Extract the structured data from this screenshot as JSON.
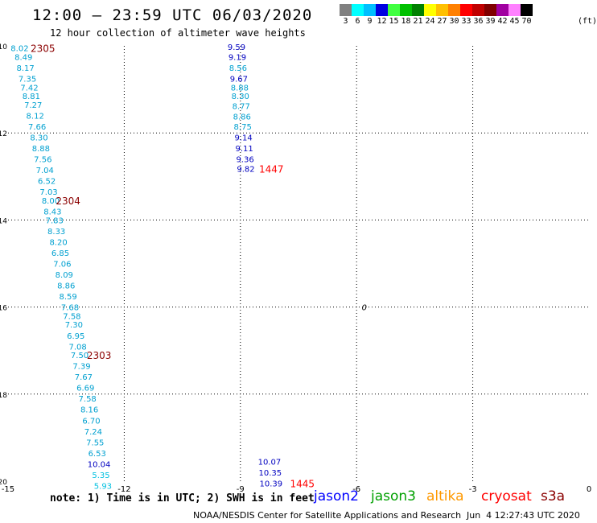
{
  "header": {
    "title": "12:00 – 23:59 UTC 06/03/2020",
    "subtitle": "12 hour collection of altimeter wave heights"
  },
  "colorbar": {
    "colors": [
      "#808080",
      "#00ffff",
      "#00bfff",
      "#0000e0",
      "#40ff40",
      "#00c000",
      "#008000",
      "#ffff00",
      "#ffc000",
      "#ff8000",
      "#ff0000",
      "#c00000",
      "#800000",
      "#a000a0",
      "#ff80ff",
      "#000000"
    ],
    "labels": [
      "3",
      "6",
      "9",
      "12",
      "15",
      "18",
      "21",
      "24",
      "27",
      "30",
      "33",
      "36",
      "39",
      "42",
      "45",
      "70"
    ],
    "unit": "(ft)"
  },
  "note": "note: 1) Time is in UTC; 2) SWH is in feet",
  "legend": [
    {
      "name": "jason2",
      "color": "#0000ff"
    },
    {
      "name": "jason3",
      "color": "#00a000"
    },
    {
      "name": "altika",
      "color": "#ff9900"
    },
    {
      "name": "cryosat",
      "color": "#ff0000"
    },
    {
      "name": "s3a",
      "color": "#8b0000"
    }
  ],
  "footer": {
    "credit": "NOAA/NESDIS Center for Satellite Applications and Research",
    "timestamp": "Jun  4 12:27:43 UTC 2020"
  },
  "chart_data": {
    "type": "scatter",
    "xlim": [
      -15,
      0
    ],
    "ylim": [
      -20,
      -10
    ],
    "x_ticks": [
      -15,
      -12,
      -9,
      -6,
      -3,
      0
    ],
    "y_ticks": [
      -10,
      -12,
      -14,
      -16,
      -18,
      -20
    ],
    "x_tick_labels": [
      "-15",
      "-12",
      "-9",
      "-6",
      "-3",
      "0"
    ],
    "y_tick_labels": [
      "-10",
      "-12",
      "-14",
      "-16",
      "-18",
      "-20"
    ],
    "grid": true,
    "tracks": [
      {
        "color": "#00a0d0",
        "points": [
          {
            "x": -14.7,
            "y": -10.05,
            "v": "8.02",
            "c": "#00a0d0"
          },
          {
            "x": -14.6,
            "y": -10.25,
            "v": "8.49",
            "c": "#00a0d0"
          },
          {
            "x": -14.55,
            "y": -10.5,
            "v": "8.17",
            "c": "#00a0d0"
          },
          {
            "x": -14.5,
            "y": -10.75,
            "v": "7.35",
            "c": "#00a0d0"
          },
          {
            "x": -14.45,
            "y": -10.95,
            "v": "7.42",
            "c": "#00a0d0"
          },
          {
            "x": -14.4,
            "y": -11.15,
            "v": "8.81",
            "c": "#00a0d0"
          },
          {
            "x": -14.35,
            "y": -11.35,
            "v": "7.27",
            "c": "#00a0d0"
          },
          {
            "x": -14.3,
            "y": -11.6,
            "v": "8.12",
            "c": "#00a0d0"
          },
          {
            "x": -14.25,
            "y": -11.85,
            "v": "7.66",
            "c": "#00a0d0"
          },
          {
            "x": -14.2,
            "y": -12.1,
            "v": "8.30",
            "c": "#00a0d0"
          },
          {
            "x": -14.15,
            "y": -12.35,
            "v": "8.88",
            "c": "#00a0d0"
          },
          {
            "x": -14.1,
            "y": -12.6,
            "v": "7.56",
            "c": "#00a0d0"
          },
          {
            "x": -14.05,
            "y": -12.85,
            "v": "7.04",
            "c": "#00a0d0"
          },
          {
            "x": -14.0,
            "y": -13.1,
            "v": "6.52",
            "c": "#00a0d0"
          },
          {
            "x": -13.95,
            "y": -13.35,
            "v": "7.03",
            "c": "#00a0d0"
          },
          {
            "x": -13.9,
            "y": -13.55,
            "v": "8.00",
            "c": "#00a0d0"
          },
          {
            "x": -13.85,
            "y": -13.8,
            "v": "8.43",
            "c": "#00a0d0"
          },
          {
            "x": -13.8,
            "y": -14.0,
            "v": "7.83",
            "c": "#00a0d0"
          },
          {
            "x": -13.75,
            "y": -14.25,
            "v": "8.33",
            "c": "#00a0d0"
          },
          {
            "x": -13.7,
            "y": -14.5,
            "v": "8.20",
            "c": "#00a0d0"
          },
          {
            "x": -13.65,
            "y": -14.75,
            "v": "6.85",
            "c": "#00a0d0"
          },
          {
            "x": -13.6,
            "y": -15.0,
            "v": "7.06",
            "c": "#00a0d0"
          },
          {
            "x": -13.55,
            "y": -15.25,
            "v": "8.09",
            "c": "#00a0d0"
          },
          {
            "x": -13.5,
            "y": -15.5,
            "v": "8.86",
            "c": "#00a0d0"
          },
          {
            "x": -13.45,
            "y": -15.75,
            "v": "8.59",
            "c": "#00a0d0"
          },
          {
            "x": -13.4,
            "y": -16.0,
            "v": "7.68",
            "c": "#00a0d0"
          },
          {
            "x": -13.35,
            "y": -16.2,
            "v": "7.58",
            "c": "#00a0d0"
          },
          {
            "x": -13.3,
            "y": -16.4,
            "v": "7.30",
            "c": "#00a0d0"
          },
          {
            "x": -13.25,
            "y": -16.65,
            "v": "6.95",
            "c": "#00a0d0"
          },
          {
            "x": -13.2,
            "y": -16.9,
            "v": "7.08",
            "c": "#00a0d0"
          },
          {
            "x": -13.15,
            "y": -17.1,
            "v": "7.50",
            "c": "#00a0d0"
          },
          {
            "x": -13.1,
            "y": -17.35,
            "v": "7.39",
            "c": "#00a0d0"
          },
          {
            "x": -13.05,
            "y": -17.6,
            "v": "7.67",
            "c": "#00a0d0"
          },
          {
            "x": -13.0,
            "y": -17.85,
            "v": "6.69",
            "c": "#00a0d0"
          },
          {
            "x": -12.95,
            "y": -18.1,
            "v": "7.58",
            "c": "#00a0d0"
          },
          {
            "x": -12.9,
            "y": -18.35,
            "v": "8.16",
            "c": "#00a0d0"
          },
          {
            "x": -12.85,
            "y": -18.6,
            "v": "6.70",
            "c": "#00a0d0"
          },
          {
            "x": -12.8,
            "y": -18.85,
            "v": "7.24",
            "c": "#00a0d0"
          },
          {
            "x": -12.75,
            "y": -19.1,
            "v": "7.55",
            "c": "#00a0d0"
          },
          {
            "x": -12.7,
            "y": -19.35,
            "v": "6.53",
            "c": "#00a0d0"
          },
          {
            "x": -12.65,
            "y": -19.6,
            "v": "10.04",
            "c": "#0000c0"
          },
          {
            "x": -12.6,
            "y": -19.85,
            "v": "5.35",
            "c": "#00c0e0"
          },
          {
            "x": -12.55,
            "y": -20.1,
            "v": "5.93",
            "c": "#00c0e0"
          }
        ],
        "labels": [
          {
            "x": -14.1,
            "y": -10.05,
            "text": "2305",
            "color": "#8b0000"
          },
          {
            "x": -13.45,
            "y": -13.55,
            "text": "2304",
            "color": "#8b0000"
          },
          {
            "x": -12.65,
            "y": -17.1,
            "text": "2303",
            "color": "#8b0000"
          }
        ]
      },
      {
        "color": "#0000c0",
        "points": [
          {
            "x": -9.1,
            "y": -10.02,
            "v": "9.59",
            "c": "#0000c0"
          },
          {
            "x": -9.08,
            "y": -10.25,
            "v": "9.19",
            "c": "#0000c0"
          },
          {
            "x": -9.06,
            "y": -10.5,
            "v": "8.56",
            "c": "#00a0d0"
          },
          {
            "x": -9.04,
            "y": -10.75,
            "v": "9.67",
            "c": "#0000c0"
          },
          {
            "x": -9.02,
            "y": -10.95,
            "v": "8.88",
            "c": "#00a0d0"
          },
          {
            "x": -9.0,
            "y": -11.15,
            "v": "8.30",
            "c": "#00a0d0"
          },
          {
            "x": -8.98,
            "y": -11.38,
            "v": "8.77",
            "c": "#00a0d0"
          },
          {
            "x": -8.96,
            "y": -11.62,
            "v": "8.86",
            "c": "#00a0d0"
          },
          {
            "x": -8.94,
            "y": -11.85,
            "v": "8.75",
            "c": "#00a0d0"
          },
          {
            "x": -8.92,
            "y": -12.1,
            "v": "9.14",
            "c": "#0000c0"
          },
          {
            "x": -8.9,
            "y": -12.35,
            "v": "9.11",
            "c": "#0000c0"
          },
          {
            "x": -8.88,
            "y": -12.6,
            "v": "9.36",
            "c": "#0000c0"
          },
          {
            "x": -8.86,
            "y": -12.82,
            "v": "9.82",
            "c": "#0000c0"
          }
        ],
        "labels": [
          {
            "x": -8.2,
            "y": -12.82,
            "text": "1447",
            "color": "#ff0000"
          }
        ]
      },
      {
        "color": "#0000c0",
        "points": [
          {
            "x": -8.25,
            "y": -19.55,
            "v": "10.07",
            "c": "#0000c0"
          },
          {
            "x": -8.23,
            "y": -19.8,
            "v": "10.35",
            "c": "#0000c0"
          },
          {
            "x": -8.21,
            "y": -20.05,
            "v": "10.39",
            "c": "#0000c0"
          }
        ],
        "labels": [
          {
            "x": -7.4,
            "y": -20.05,
            "text": "1445",
            "color": "#ff0000"
          }
        ]
      }
    ],
    "annotations": [
      {
        "x": -5.8,
        "y": -16.0,
        "text": "0",
        "color": "#000000"
      }
    ]
  }
}
